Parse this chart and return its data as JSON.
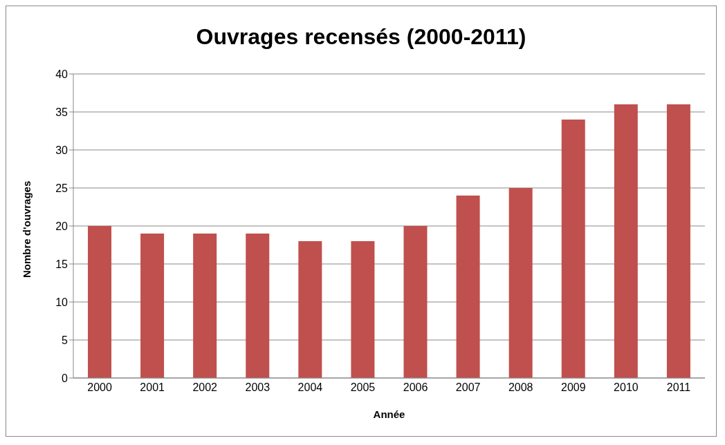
{
  "chart_data": {
    "type": "bar",
    "title": "Ouvrages recensés (2000-2011)",
    "xlabel": "Année",
    "ylabel": "Nombre d'ouvrages",
    "categories": [
      "2000",
      "2001",
      "2002",
      "2003",
      "2004",
      "2005",
      "2006",
      "2007",
      "2008",
      "2009",
      "2010",
      "2011"
    ],
    "values": [
      20,
      19,
      19,
      19,
      18,
      18,
      20,
      24,
      25,
      34,
      36,
      36
    ],
    "color": "#c0504d",
    "ylim": [
      0,
      40
    ],
    "yticks": [
      0,
      5,
      10,
      15,
      20,
      25,
      30,
      35,
      40
    ],
    "grid": "y",
    "legend": false
  }
}
